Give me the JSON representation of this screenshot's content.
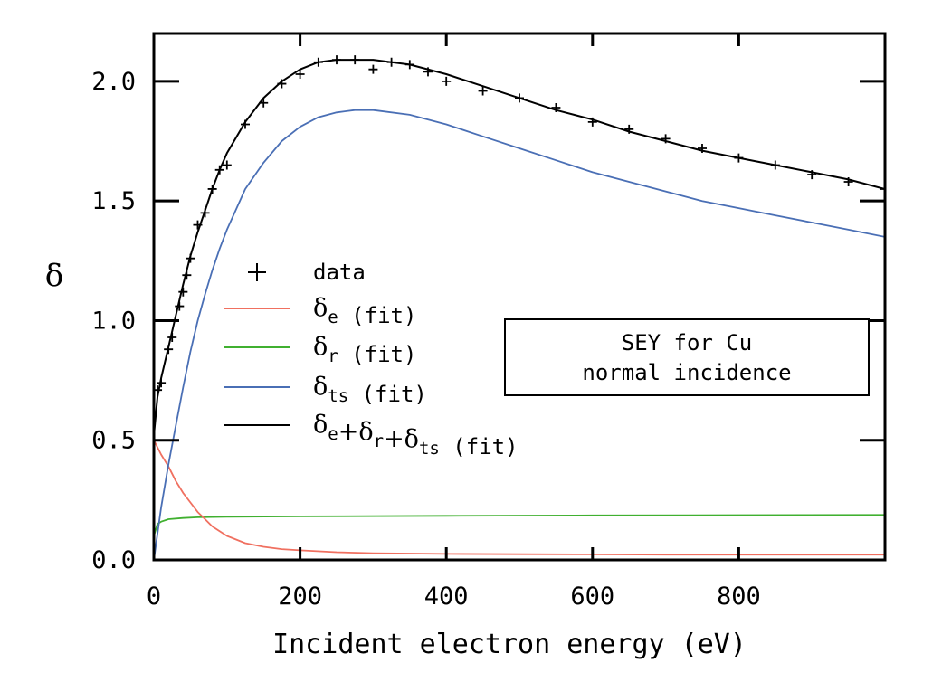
{
  "chart_data": {
    "type": "line",
    "xlabel": "Incident electron energy (eV)",
    "ylabel": "δ",
    "xlim": [
      0,
      1000
    ],
    "ylim": [
      0,
      2.2
    ],
    "x_ticks": [
      0,
      200,
      400,
      600,
      800
    ],
    "x_tick_labels": [
      "0",
      "200",
      "400",
      "600",
      "800"
    ],
    "y_ticks": [
      0,
      0.5,
      1.0,
      1.5,
      2.0
    ],
    "y_tick_labels": [
      "0.0",
      "0.5",
      "1.0",
      "1.5",
      "2.0"
    ],
    "grid": false,
    "legend_position": "center-left",
    "annotation": {
      "line1": "SEY for Cu",
      "line2": "normal incidence"
    },
    "series": [
      {
        "key": "data",
        "name": "data",
        "kind": "scatter",
        "marker": "+",
        "color": "#000000",
        "x": [
          5,
          10,
          20,
          25,
          35,
          40,
          45,
          50,
          60,
          70,
          80,
          90,
          100,
          125,
          150,
          175,
          200,
          225,
          250,
          275,
          300,
          325,
          350,
          375,
          400,
          450,
          500,
          550,
          600,
          650,
          700,
          750,
          800,
          850,
          900,
          950,
          1000
        ],
        "y": [
          0.71,
          0.74,
          0.88,
          0.93,
          1.06,
          1.12,
          1.19,
          1.26,
          1.4,
          1.45,
          1.55,
          1.63,
          1.65,
          1.82,
          1.91,
          1.99,
          2.03,
          2.08,
          2.09,
          2.09,
          2.05,
          2.08,
          2.07,
          2.04,
          2.0,
          1.96,
          1.93,
          1.89,
          1.83,
          1.8,
          1.76,
          1.72,
          1.68,
          1.65,
          1.61,
          1.58,
          1.55
        ]
      },
      {
        "key": "e",
        "name": "δ_e (fit)",
        "label_main": "δ",
        "label_sub": "e",
        "label_suffix": " (fit)",
        "kind": "line",
        "color": "#f07060",
        "x": [
          0,
          10,
          20,
          30,
          40,
          50,
          60,
          70,
          80,
          100,
          125,
          150,
          175,
          200,
          250,
          300,
          400,
          500,
          600,
          700,
          800,
          900,
          1000
        ],
        "y": [
          0.5,
          0.44,
          0.39,
          0.33,
          0.28,
          0.24,
          0.2,
          0.17,
          0.14,
          0.1,
          0.07,
          0.055,
          0.045,
          0.04,
          0.032,
          0.028,
          0.025,
          0.024,
          0.023,
          0.022,
          0.022,
          0.022,
          0.022
        ]
      },
      {
        "key": "r",
        "name": "δ_r (fit)",
        "label_main": "δ",
        "label_sub": "r",
        "label_suffix": " (fit)",
        "kind": "line",
        "color": "#40b030",
        "x": [
          0,
          5,
          10,
          20,
          40,
          60,
          100,
          200,
          400,
          600,
          800,
          1000
        ],
        "y": [
          0.1,
          0.15,
          0.16,
          0.17,
          0.175,
          0.178,
          0.18,
          0.182,
          0.184,
          0.186,
          0.187,
          0.188
        ]
      },
      {
        "key": "ts",
        "name": "δ_ts (fit)",
        "label_main": "δ",
        "label_sub": "ts",
        "label_suffix": " (fit)",
        "kind": "line",
        "color": "#4a6fb5",
        "x": [
          0,
          10,
          20,
          30,
          40,
          50,
          60,
          70,
          80,
          90,
          100,
          125,
          150,
          175,
          200,
          225,
          250,
          275,
          300,
          350,
          400,
          450,
          500,
          550,
          600,
          650,
          700,
          750,
          800,
          850,
          900,
          950,
          1000
        ],
        "y": [
          0.0,
          0.22,
          0.4,
          0.56,
          0.72,
          0.87,
          1.0,
          1.11,
          1.21,
          1.3,
          1.38,
          1.55,
          1.66,
          1.75,
          1.81,
          1.85,
          1.87,
          1.88,
          1.88,
          1.86,
          1.82,
          1.77,
          1.72,
          1.67,
          1.62,
          1.58,
          1.54,
          1.5,
          1.47,
          1.44,
          1.41,
          1.38,
          1.35
        ]
      },
      {
        "key": "sum",
        "name": "δ_e+δ_r+δ_ts (fit)",
        "label_parts": [
          {
            "main": "δ",
            "sub": "e"
          },
          {
            "main": "+δ",
            "sub": "r"
          },
          {
            "main": "+δ",
            "sub": "ts"
          }
        ],
        "label_suffix": " (fit)",
        "kind": "line",
        "color": "#000000",
        "x": [
          0,
          5,
          10,
          20,
          30,
          40,
          50,
          60,
          70,
          80,
          90,
          100,
          125,
          150,
          175,
          200,
          225,
          250,
          275,
          300,
          350,
          400,
          450,
          500,
          550,
          600,
          650,
          700,
          750,
          800,
          850,
          900,
          950,
          1000
        ],
        "y": [
          0.52,
          0.68,
          0.76,
          0.89,
          1.02,
          1.15,
          1.27,
          1.37,
          1.46,
          1.55,
          1.63,
          1.7,
          1.83,
          1.93,
          2.0,
          2.05,
          2.08,
          2.09,
          2.09,
          2.09,
          2.07,
          2.03,
          1.98,
          1.93,
          1.88,
          1.84,
          1.79,
          1.75,
          1.71,
          1.68,
          1.65,
          1.62,
          1.59,
          1.55
        ]
      }
    ]
  }
}
